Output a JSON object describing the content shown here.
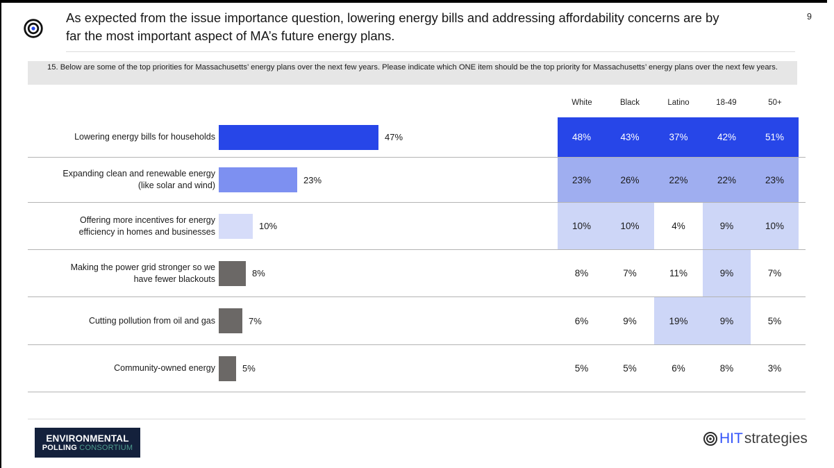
{
  "page_number": "9",
  "title": {
    "line1": "As expected from the issue importance question, lowering energy bills and addressing affordability concerns are by",
    "line2": "far the most important aspect of MA’s future energy plans."
  },
  "question": "15. Below are some of the top priorities for Massachusetts’ energy plans over the next few years. Please indicate which ONE item should be the top priority for Massachusetts’ energy plans over the next few years.",
  "colors": {
    "accent_blue": "#2746E8",
    "mid_blue_bar": "#7D90F1",
    "mid_blue_cell": "#9FAEF0",
    "light_blue_bar": "#D6DCF9",
    "light_blue_cell": "#CDD6F7",
    "gray_bar": "#6B6866",
    "banner_gray": "#E6E6E6",
    "logo_navy": "#14213C",
    "logo_teal": "#4E9D8E",
    "hit_blue": "#3353F9"
  },
  "chart_data": {
    "type": "bar",
    "orientation": "horizontal",
    "title": "",
    "xlabel": "",
    "ylabel": "",
    "xlim": [
      0,
      50
    ],
    "grid": false,
    "legend": "none",
    "columns": [
      "White",
      "Black",
      "Latino",
      "18-49",
      "50+"
    ],
    "categories": [
      "Lowering energy bills for households",
      "Expanding clean and renewable energy (like solar and wind)",
      "Offering more incentives for energy efficiency in homes and businesses",
      "Making the power grid stronger so we have fewer blackouts",
      "Cutting pollution from oil and gas",
      "Community-owned energy"
    ],
    "values": [
      47,
      23,
      10,
      8,
      7,
      5
    ],
    "rows": [
      {
        "label_lines": [
          "Lowering energy bills for households"
        ],
        "pct": 47,
        "value_label": "47%",
        "bar_color": "#2746E8",
        "cells": [
          {
            "t": "48%",
            "v": 48,
            "bg": "#2746E8",
            "fg": "#FFFFFF"
          },
          {
            "t": "43%",
            "v": 43,
            "bg": "#2746E8",
            "fg": "#FFFFFF"
          },
          {
            "t": "37%",
            "v": 37,
            "bg": "#2746E8",
            "fg": "#FFFFFF"
          },
          {
            "t": "42%",
            "v": 42,
            "bg": "#2746E8",
            "fg": "#FFFFFF"
          },
          {
            "t": "51%",
            "v": 51,
            "bg": "#2746E8",
            "fg": "#FFFFFF"
          }
        ]
      },
      {
        "label_lines": [
          "Expanding clean and renewable energy",
          "(like solar and wind)"
        ],
        "pct": 23,
        "value_label": "23%",
        "bar_color": "#7D90F1",
        "cells": [
          {
            "t": "23%",
            "v": 23,
            "bg": "#9FAEF0",
            "fg": "#1A1A1A"
          },
          {
            "t": "26%",
            "v": 26,
            "bg": "#9FAEF0",
            "fg": "#1A1A1A"
          },
          {
            "t": "22%",
            "v": 22,
            "bg": "#9FAEF0",
            "fg": "#1A1A1A"
          },
          {
            "t": "22%",
            "v": 22,
            "bg": "#9FAEF0",
            "fg": "#1A1A1A"
          },
          {
            "t": "23%",
            "v": 23,
            "bg": "#9FAEF0",
            "fg": "#1A1A1A"
          }
        ]
      },
      {
        "label_lines": [
          "Offering more incentives for energy",
          "efficiency in homes and businesses"
        ],
        "pct": 10,
        "value_label": "10%",
        "bar_color": "#D6DCF9",
        "cells": [
          {
            "t": "10%",
            "v": 10,
            "bg": "#CDD6F7",
            "fg": "#1A1A1A"
          },
          {
            "t": "10%",
            "v": 10,
            "bg": "#CDD6F7",
            "fg": "#1A1A1A"
          },
          {
            "t": "4%",
            "v": 4,
            "bg": "#FFFFFF",
            "fg": "#1A1A1A"
          },
          {
            "t": "9%",
            "v": 9,
            "bg": "#CDD6F7",
            "fg": "#1A1A1A"
          },
          {
            "t": "10%",
            "v": 10,
            "bg": "#CDD6F7",
            "fg": "#1A1A1A"
          }
        ]
      },
      {
        "label_lines": [
          "Making the power grid stronger so we",
          "have fewer blackouts"
        ],
        "pct": 8,
        "value_label": "8%",
        "bar_color": "#6B6866",
        "cells": [
          {
            "t": "8%",
            "v": 8,
            "bg": "#FFFFFF",
            "fg": "#1A1A1A"
          },
          {
            "t": "7%",
            "v": 7,
            "bg": "#FFFFFF",
            "fg": "#1A1A1A"
          },
          {
            "t": "11%",
            "v": 11,
            "bg": "#FFFFFF",
            "fg": "#1A1A1A"
          },
          {
            "t": "9%",
            "v": 9,
            "bg": "#CDD6F7",
            "fg": "#1A1A1A"
          },
          {
            "t": "7%",
            "v": 7,
            "bg": "#FFFFFF",
            "fg": "#1A1A1A"
          }
        ]
      },
      {
        "label_lines": [
          "Cutting pollution from oil and gas"
        ],
        "pct": 7,
        "value_label": "7%",
        "bar_color": "#6B6866",
        "cells": [
          {
            "t": "6%",
            "v": 6,
            "bg": "#FFFFFF",
            "fg": "#1A1A1A"
          },
          {
            "t": "9%",
            "v": 9,
            "bg": "#FFFFFF",
            "fg": "#1A1A1A"
          },
          {
            "t": "19%",
            "v": 19,
            "bg": "#CDD6F7",
            "fg": "#1A1A1A"
          },
          {
            "t": "9%",
            "v": 9,
            "bg": "#CDD6F7",
            "fg": "#1A1A1A"
          },
          {
            "t": "5%",
            "v": 5,
            "bg": "#FFFFFF",
            "fg": "#1A1A1A"
          }
        ]
      },
      {
        "label_lines": [
          "Community-owned energy"
        ],
        "pct": 5,
        "value_label": "5%",
        "bar_color": "#6B6866",
        "cells": [
          {
            "t": "5%",
            "v": 5,
            "bg": "#FFFFFF",
            "fg": "#1A1A1A"
          },
          {
            "t": "5%",
            "v": 5,
            "bg": "#FFFFFF",
            "fg": "#1A1A1A"
          },
          {
            "t": "6%",
            "v": 6,
            "bg": "#FFFFFF",
            "fg": "#1A1A1A"
          },
          {
            "t": "8%",
            "v": 8,
            "bg": "#FFFFFF",
            "fg": "#1A1A1A"
          },
          {
            "t": "3%",
            "v": 3,
            "bg": "#FFFFFF",
            "fg": "#1A1A1A"
          }
        ]
      }
    ]
  },
  "footer": {
    "epc_line1": "ENVIRONMENTAL",
    "epc_line2_bold": "POLLING",
    "epc_line2_teal": "CONSORTIUM",
    "hit_part1": "HIT",
    "hit_part2": "strategies"
  }
}
